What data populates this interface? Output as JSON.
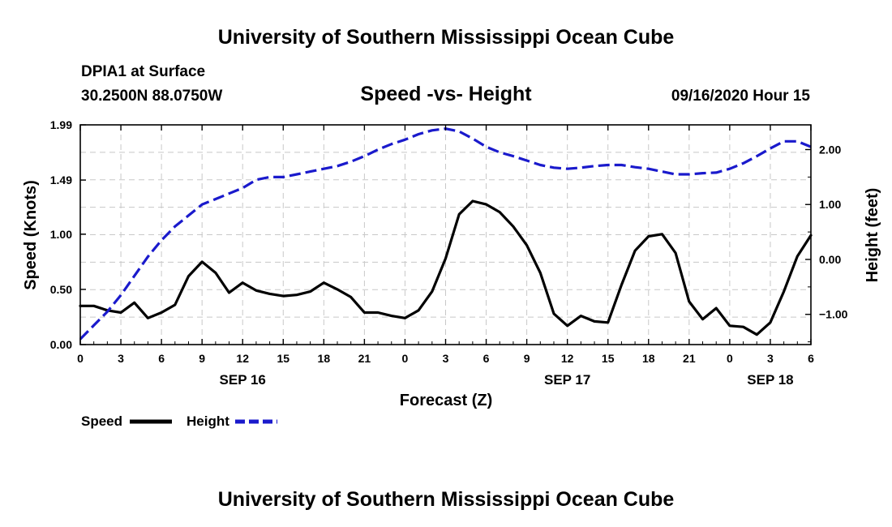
{
  "chart_data": {
    "type": "line",
    "title": "University of Southern Mississippi Ocean Cube",
    "footer": "University of Southern Mississippi Ocean Cube",
    "station": "DPIA1 at Surface",
    "location": "30.2500N 88.0750W",
    "subtitle": "Speed -vs- Height",
    "datetime": "09/16/2020 Hour 15",
    "xlabel": "Forecast (Z)",
    "ylabel": "Speed (Knots)",
    "y2label": "Height (feet)",
    "xlim": [
      0,
      54
    ],
    "ylim": [
      0.0,
      1.99
    ],
    "y2lim": [
      -1.55,
      2.45
    ],
    "x_ticks": [
      0,
      3,
      6,
      9,
      12,
      15,
      18,
      21,
      24,
      27,
      30,
      33,
      36,
      39,
      42,
      45,
      48,
      51,
      54
    ],
    "x_tick_labels": [
      "0",
      "3",
      "6",
      "9",
      "12",
      "15",
      "18",
      "21",
      "0",
      "3",
      "6",
      "9",
      "12",
      "15",
      "18",
      "21",
      "0",
      "3",
      "6"
    ],
    "y_ticks": [
      0.0,
      0.5,
      1.0,
      1.49,
      1.99
    ],
    "y_tick_labels": [
      "0.00",
      "0.50",
      "1.00",
      "1.49",
      "1.99"
    ],
    "y2_ticks": [
      -1.0,
      0.0,
      1.0,
      2.0
    ],
    "y2_tick_labels": [
      "−1.00",
      "0.00",
      "1.00",
      "2.00"
    ],
    "day_labels": [
      {
        "x": 12,
        "label": "SEP 16"
      },
      {
        "x": 36,
        "label": "SEP 17"
      },
      {
        "x": 51,
        "label": "SEP 18"
      }
    ],
    "grid": true,
    "series": [
      {
        "name": "Speed",
        "axis": "left",
        "color": "#000000",
        "style": "solid",
        "x": [
          0,
          1,
          2,
          3,
          4,
          5,
          6,
          7,
          8,
          9,
          10,
          11,
          12,
          13,
          14,
          15,
          16,
          17,
          18,
          19,
          20,
          21,
          22,
          23,
          24,
          25,
          26,
          27,
          28,
          29,
          30,
          31,
          32,
          33,
          34,
          35,
          36,
          37,
          38,
          39,
          40,
          41,
          42,
          43,
          44,
          45,
          46,
          47,
          48,
          49,
          50,
          51,
          52,
          53,
          54
        ],
        "values": [
          0.35,
          0.35,
          0.31,
          0.29,
          0.38,
          0.24,
          0.29,
          0.36,
          0.62,
          0.75,
          0.65,
          0.47,
          0.56,
          0.49,
          0.46,
          0.44,
          0.45,
          0.48,
          0.56,
          0.5,
          0.43,
          0.29,
          0.29,
          0.26,
          0.24,
          0.31,
          0.48,
          0.78,
          1.18,
          1.3,
          1.27,
          1.2,
          1.07,
          0.9,
          0.65,
          0.28,
          0.17,
          0.26,
          0.21,
          0.2,
          0.54,
          0.85,
          0.98,
          1.0,
          0.83,
          0.39,
          0.23,
          0.33,
          0.17,
          0.16,
          0.09,
          0.2,
          0.48,
          0.8,
          0.99
        ]
      },
      {
        "name": "Height",
        "axis": "right",
        "color": "#1a1acc",
        "style": "dashed",
        "x": [
          0,
          1,
          2,
          3,
          4,
          5,
          6,
          7,
          8,
          9,
          10,
          11,
          12,
          13,
          14,
          15,
          16,
          17,
          18,
          19,
          20,
          21,
          22,
          23,
          24,
          25,
          26,
          27,
          28,
          29,
          30,
          31,
          32,
          33,
          34,
          35,
          36,
          37,
          38,
          39,
          40,
          41,
          42,
          43,
          44,
          45,
          46,
          47,
          48,
          49,
          50,
          51,
          52,
          53,
          54
        ],
        "values": [
          -1.45,
          -1.2,
          -0.95,
          -0.65,
          -0.3,
          0.05,
          0.35,
          0.6,
          0.8,
          1.0,
          1.1,
          1.2,
          1.3,
          1.45,
          1.5,
          1.5,
          1.55,
          1.6,
          1.65,
          1.7,
          1.78,
          1.88,
          2.0,
          2.1,
          2.18,
          2.28,
          2.35,
          2.38,
          2.33,
          2.2,
          2.05,
          1.95,
          1.88,
          1.8,
          1.72,
          1.67,
          1.65,
          1.67,
          1.7,
          1.72,
          1.72,
          1.68,
          1.65,
          1.6,
          1.55,
          1.55,
          1.57,
          1.58,
          1.65,
          1.75,
          1.88,
          2.02,
          2.15,
          2.15,
          2.05
        ]
      }
    ],
    "legend": [
      {
        "label": "Speed",
        "color": "#000000",
        "style": "solid"
      },
      {
        "label": "Height",
        "color": "#1a1acc",
        "style": "dashed"
      }
    ]
  }
}
